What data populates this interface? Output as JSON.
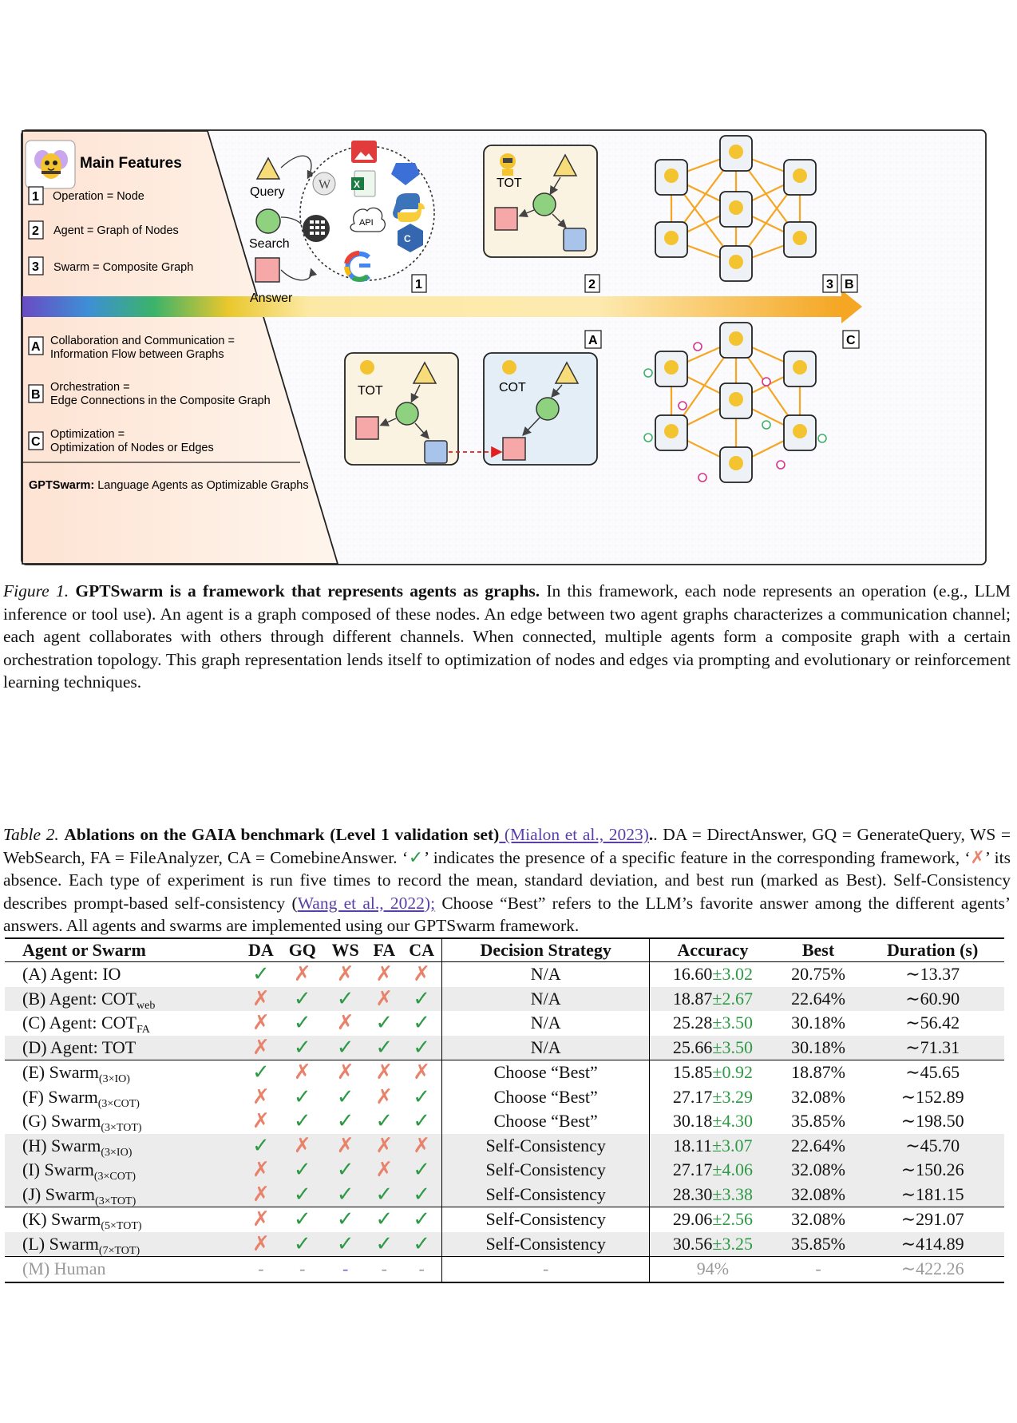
{
  "figure": {
    "main_features_title": "Main Features",
    "features": [
      {
        "num": "1",
        "text": "Operation = Node"
      },
      {
        "num": "2",
        "text": "Agent = Graph of Nodes"
      },
      {
        "num": "3",
        "text": "Swarm = Composite Graph"
      }
    ],
    "aspects": [
      {
        "num": "A",
        "line1": "Collaboration and Communication =",
        "line2": "Information Flow between Graphs"
      },
      {
        "num": "B",
        "line1": "Orchestration =",
        "line2": "Edge Connections in the Composite Graph"
      },
      {
        "num": "C",
        "line1": "Optimization =",
        "line2": "Optimization of Nodes or Edges"
      }
    ],
    "footer_bold": "GPTSwarm:",
    "footer_rest": " Language Agents as Optimizable Graphs",
    "node_labels": {
      "query": "Query",
      "search": "Search",
      "answer": "Answer"
    },
    "tool_api": "API",
    "agent_tot": "TOT",
    "agent_cot": "COT",
    "panel_tags": [
      "1",
      "2",
      "3",
      "B",
      "A",
      "C"
    ]
  },
  "figure_caption": {
    "label": "Figure 1.",
    "title": "GPTSwarm is a framework that represents agents as graphs.",
    "body": " In this framework, each node represents an operation (e.g., LLM inference or tool use). An agent is a graph composed of these nodes. An edge between two agent graphs characterizes a communication channel; each agent collaborates with others through different channels. When connected, multiple agents form a composite graph with a certain orchestration topology. This graph representation lends itself to optimization of nodes and edges via prompting and evolutionary or reinforcement learning techniques."
  },
  "table_caption": {
    "label": "Table 2.",
    "title": "Ablations on the GAIA benchmark (Level 1 validation set)",
    "cite1": " (Mialon et al., 2023)",
    "part1": ". DA = DirectAnswer, GQ = GenerateQuery, WS = WebSearch, FA = FileAnalyzer, CA = ComebineAnswer. ‘",
    "check_glyph": "✓",
    "part2": "’ indicates the presence of a specific feature in the corresponding framework, ‘",
    "cross_glyph": "✗",
    "part3": "’ its absence. Each type of experiment is run five times to record the mean, standard deviation, and best run (marked as Best). Self-Consistency describes prompt-based self-consistency (",
    "cite2": "Wang et al., 2022);",
    "part4": " Choose “Best” refers to the LLM’s favorite answer among the different agents’ answers. All agents and swarms are implemented using our GPTSwarm framework."
  },
  "table": {
    "columns": [
      "Agent or Swarm",
      "DA",
      "GQ",
      "WS",
      "FA",
      "CA",
      "Decision Strategy",
      "Accuracy",
      "Best",
      "Duration (s)"
    ],
    "rows": [
      {
        "name": "(A) Agent: IO",
        "sub": "",
        "marks": "YNNNN",
        "strategy": "N/A",
        "acc": "16.60",
        "std": "±3.02",
        "best": "20.75%",
        "dur": "∼13.37"
      },
      {
        "name": "(B) Agent: COT",
        "sub": "web",
        "marks": "NYYNY",
        "strategy": "N/A",
        "acc": "18.87",
        "std": "±2.67",
        "best": "22.64%",
        "dur": "∼60.90"
      },
      {
        "name": "(C) Agent: COT",
        "sub": "FA",
        "marks": "NYNYY",
        "strategy": "N/A",
        "acc": "25.28",
        "std": "±3.50",
        "best": "30.18%",
        "dur": "∼56.42"
      },
      {
        "name": "(D) Agent: TOT",
        "sub": "",
        "marks": "NYYYY",
        "strategy": "N/A",
        "acc": "25.66",
        "std": "±3.50",
        "best": "30.18%",
        "dur": "∼71.31"
      },
      {
        "name": "(E) Swarm",
        "sub": "(3×IO)",
        "marks": "YNNNN",
        "strategy": "Choose “Best”",
        "acc": "15.85",
        "std": "±0.92",
        "best": "18.87%",
        "dur": "∼45.65"
      },
      {
        "name": "(F) Swarm",
        "sub": "(3×COT)",
        "marks": "NYYNY",
        "strategy": "Choose “Best”",
        "acc": "27.17",
        "std": "±3.29",
        "best": "32.08%",
        "dur": "∼152.89"
      },
      {
        "name": "(G) Swarm",
        "sub": "(3×TOT)",
        "marks": "NYYYY",
        "strategy": "Choose “Best”",
        "acc": "30.18",
        "std": "±4.30",
        "best": "35.85%",
        "dur": "∼198.50"
      },
      {
        "name": "(H) Swarm",
        "sub": "(3×IO)",
        "marks": "YNNNN",
        "strategy": "Self-Consistency",
        "acc": "18.11",
        "std": "±3.07",
        "best": "22.64%",
        "dur": "∼45.70"
      },
      {
        "name": "(I) Swarm",
        "sub": "(3×COT)",
        "marks": "NYYNY",
        "strategy": "Self-Consistency",
        "acc": "27.17",
        "std": "±4.06",
        "best": "32.08%",
        "dur": "∼150.26"
      },
      {
        "name": "(J) Swarm",
        "sub": "(3×TOT)",
        "marks": "NYYYY",
        "strategy": "Self-Consistency",
        "acc": "28.30",
        "std": "±3.38",
        "best": "32.08%",
        "dur": "∼181.15"
      },
      {
        "name": "(K) Swarm",
        "sub": "(5×TOT)",
        "marks": "NYYYY",
        "strategy": "Self-Consistency",
        "acc": "29.06",
        "std": "±2.56",
        "best": "32.08%",
        "dur": "∼291.07"
      },
      {
        "name": "(L) Swarm",
        "sub": "(7×TOT)",
        "marks": "NYYYY",
        "strategy": "Self-Consistency",
        "acc": "30.56",
        "std": "±3.25",
        "best": "35.85%",
        "dur": "∼414.89"
      }
    ],
    "human": {
      "name": "(M) Human",
      "dash": "-",
      "acc": "94%",
      "best": "-",
      "dur": "∼422.26"
    },
    "colors": {
      "check": "#2e9a45",
      "cross": "#e8826a",
      "std": "#2e9a45",
      "human": "#9a9a9a"
    }
  }
}
